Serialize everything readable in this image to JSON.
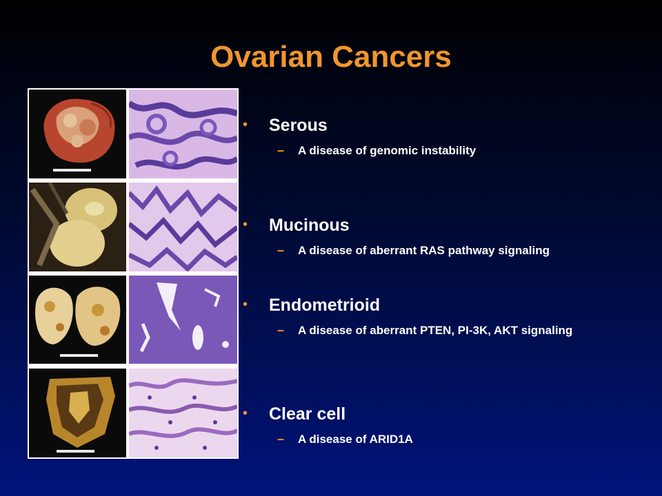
{
  "title": "Ovarian Cancers",
  "items": [
    {
      "name": "Serous",
      "description": "A disease of genomic instability"
    },
    {
      "name": "Mucinous",
      "description": "A disease of aberrant RAS pathway signaling"
    },
    {
      "name": "Endometrioid",
      "description": "A disease of aberrant PTEN, PI-3K, AKT signaling"
    },
    {
      "name": "Clear cell",
      "description": "A disease of ARID1A"
    }
  ],
  "colors": {
    "title": "#f0962e",
    "bullet": "#f0962e",
    "text": "#ffffff",
    "background_bottom": "#00137a",
    "histology_stain": "#8a5fc0"
  },
  "images": [
    {
      "gross": "gross-specimen-serous",
      "histology": "histology-serous"
    },
    {
      "gross": "gross-specimen-mucinous",
      "histology": "histology-mucinous"
    },
    {
      "gross": "gross-specimen-endometrioid",
      "histology": "histology-endometrioid"
    },
    {
      "gross": "gross-specimen-clear-cell",
      "histology": "histology-clear-cell"
    }
  ]
}
